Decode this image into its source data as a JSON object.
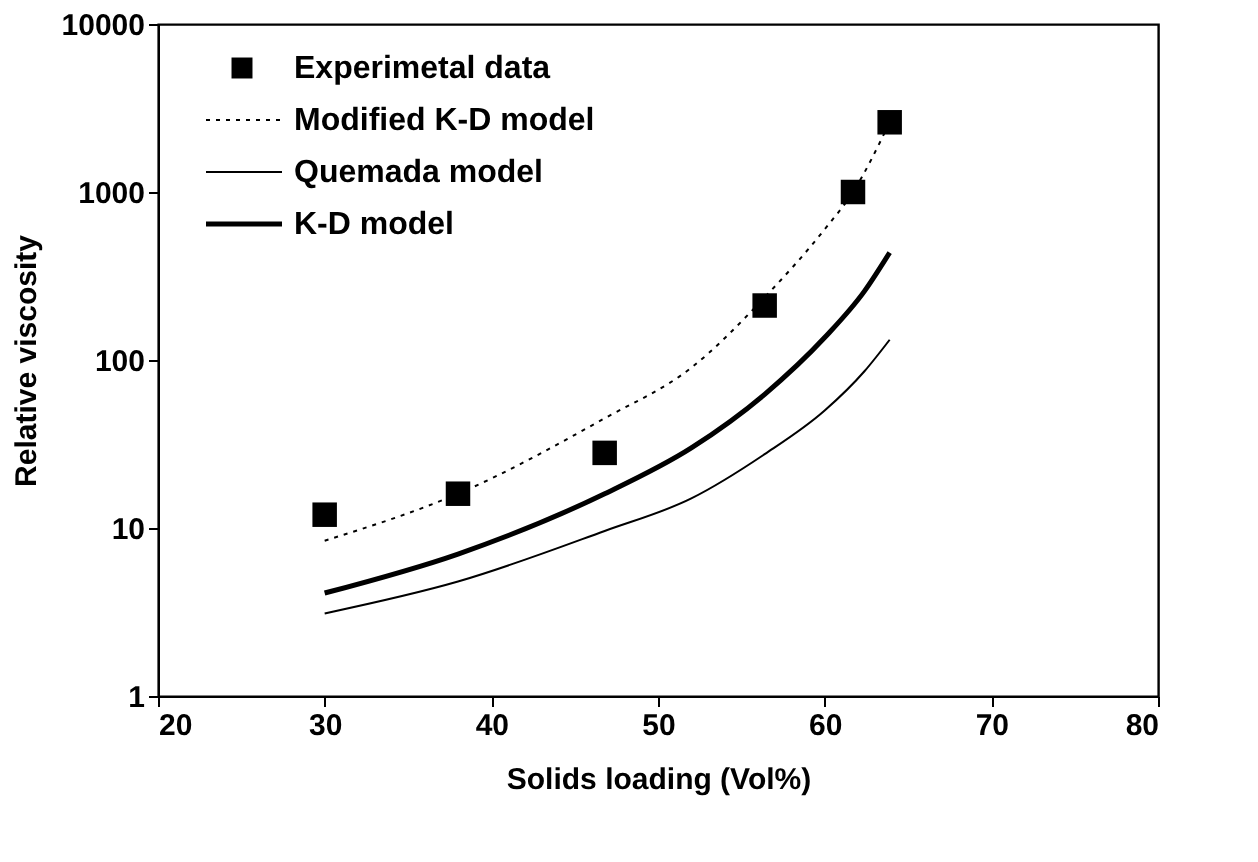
{
  "chart_data": {
    "type": "line",
    "xlabel": "Solids loading (Vol%)",
    "ylabel": "Relative viscosity",
    "xlim": [
      20,
      80
    ],
    "xticks": [
      20,
      30,
      40,
      50,
      60,
      70,
      80
    ],
    "ylim": [
      1,
      10000
    ],
    "yticks": [
      1,
      10,
      100,
      1000,
      10000
    ],
    "log": "y",
    "grid": false,
    "legend": "top left",
    "series": [
      {
        "name": "Experimetal data",
        "type": "scatter",
        "marker": "square",
        "color": "#000000",
        "x": [
          30.0,
          38.0,
          46.8,
          56.4,
          61.7,
          63.9
        ],
        "values": [
          12,
          16,
          28,
          211,
          1000,
          2600
        ]
      },
      {
        "name": "Modified K-D model",
        "line_style": "dotted",
        "color": "#000000",
        "x": [
          30.0,
          38.0,
          46.8,
          52.0,
          56.4,
          60.0,
          61.7,
          63.9
        ],
        "values": [
          8.4,
          16,
          45,
          90,
          236,
          600,
          1000,
          2600
        ]
      },
      {
        "name": "Quemada model",
        "line_style": "solid",
        "color": "#000000",
        "x": [
          30.0,
          38.0,
          46.8,
          52.0,
          56.4,
          60.0,
          62.4,
          63.9
        ],
        "values": [
          3.1,
          4.8,
          9.6,
          15,
          27.5,
          50,
          86,
          132
        ]
      },
      {
        "name": "K-D model",
        "line_style": "solid",
        "color": "#000000",
        "x": [
          30.0,
          38.0,
          46.8,
          52.0,
          56.4,
          60.0,
          62.4,
          63.9
        ],
        "values": [
          4.1,
          7.0,
          16,
          30,
          62.5,
          136,
          258,
          436
        ]
      }
    ]
  }
}
